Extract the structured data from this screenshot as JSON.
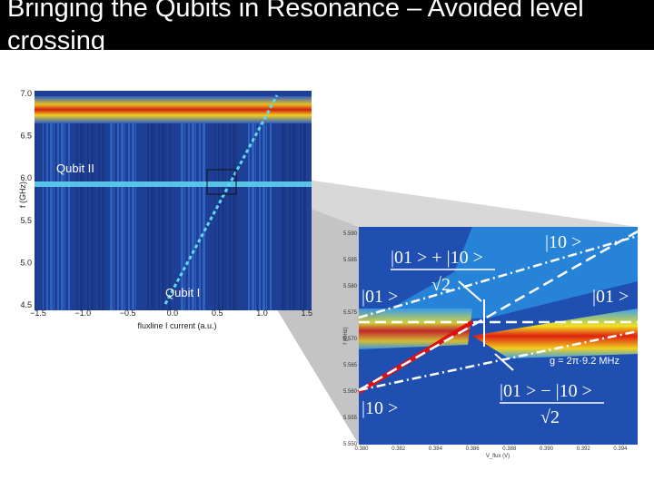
{
  "header": {
    "title": "Bringing the Qubits in Resonance – Avoided level crossing"
  },
  "left_plot": {
    "y_label": "f (GHz)",
    "x_label": "fluxline I current (a.u.)",
    "y_ticks": [
      "7.0",
      "6.5",
      "6.0",
      "5.5",
      "5.0",
      "4.5"
    ],
    "x_ticks": [
      "−1.5",
      "−1.0",
      "−0.5",
      "0.0",
      "0.5",
      "1.0",
      "1.5"
    ],
    "qubit_labels": [
      "Qubit II",
      "Qubit I"
    ]
  },
  "right_plot": {
    "y_label": "f (GHz)",
    "x_label": "V_flux (V)",
    "y_ticks": [
      "5.590",
      "5.585",
      "5.580",
      "5.575",
      "5.570",
      "5.565",
      "5.560",
      "5.555",
      "5.550"
    ],
    "x_ticks": [
      "0.380",
      "0.382",
      "0.384",
      "0.386",
      "0.388",
      "0.390",
      "0.392",
      "0.394"
    ],
    "state_labels": [
      "|10 >",
      "|01 >",
      "|01 >",
      "|10 >"
    ],
    "coupling": "g = 2π·9.2 MHz",
    "symmetric_state": {
      "numerator": "|01 > + |10 >",
      "denominator": "√2"
    },
    "antisymmetric_state": {
      "numerator": "|01 > − |10 >",
      "denominator": "√2"
    }
  }
}
